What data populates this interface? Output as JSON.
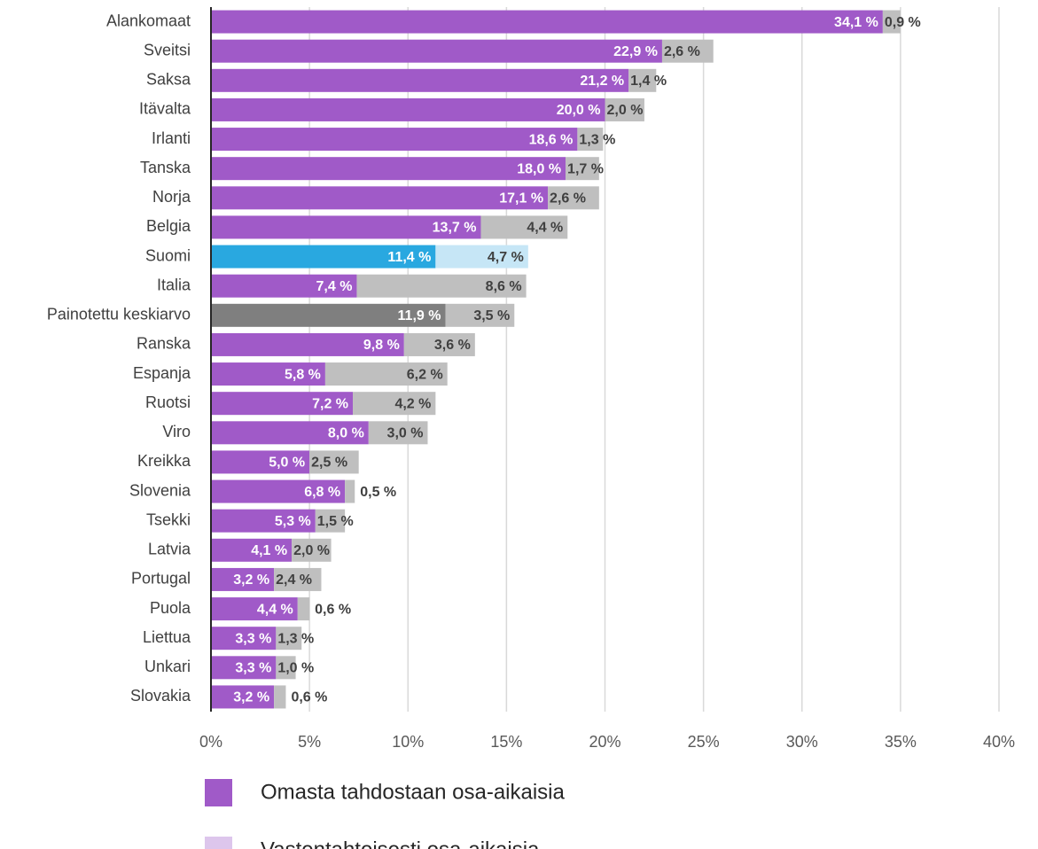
{
  "chart_data": {
    "type": "bar",
    "orientation": "horizontal",
    "stacked": true,
    "title": "",
    "xlabel": "",
    "ylabel": "",
    "xlim": [
      0,
      40
    ],
    "x_ticks": [
      "0%",
      "5%",
      "10%",
      "15%",
      "20%",
      "25%",
      "30%",
      "35%",
      "40%"
    ],
    "grid": "vertical",
    "legend_position": "bottom-left",
    "categories": [
      "Alankomaat",
      "Sveitsi",
      "Saksa",
      "Itävalta",
      "Irlanti",
      "Tanska",
      "Norja",
      "Belgia",
      "Suomi",
      "Italia",
      "Painotettu keskiarvo",
      "Ranska",
      "Espanja",
      "Ruotsi",
      "Viro",
      "Kreikka",
      "Slovenia",
      "Tsekki",
      "Latvia",
      "Portugal",
      "Puola",
      "Liettua",
      "Unkari",
      "Slovakia"
    ],
    "series": [
      {
        "name": "Omasta tahdostaan osa-aikaisia",
        "color": "#a05ac8",
        "values": [
          34.1,
          22.9,
          21.2,
          20.0,
          18.6,
          18.0,
          17.1,
          13.7,
          11.4,
          7.4,
          11.9,
          9.8,
          5.8,
          7.2,
          8.0,
          5.0,
          6.8,
          5.3,
          4.1,
          3.2,
          4.4,
          3.3,
          3.3,
          3.2
        ],
        "labels": [
          "34,1 %",
          "22,9 %",
          "21,2 %",
          "20,0 %",
          "18,6 %",
          "18,0 %",
          "17,1 %",
          "13,7 %",
          "11,4 %",
          "7,4 %",
          "11,9 %",
          "9,8 %",
          "5,8 %",
          "7,2 %",
          "8,0 %",
          "5,0 %",
          "6,8 %",
          "5,3 %",
          "4,1 %",
          "3,2 %",
          "4,4 %",
          "3,3 %",
          "3,3 %",
          "3,2 %"
        ]
      },
      {
        "name": "Vastentahtoisesti osa-aikaisia",
        "color": "#bfbfbf",
        "legend_color": "#ddc6ec",
        "values": [
          0.9,
          2.6,
          1.4,
          2.0,
          1.3,
          1.7,
          2.6,
          4.4,
          4.7,
          8.6,
          3.5,
          3.6,
          6.2,
          4.2,
          3.0,
          2.5,
          0.5,
          1.5,
          2.0,
          2.4,
          0.6,
          1.3,
          1.0,
          0.6
        ],
        "labels": [
          "0,9 %",
          "2,6 %",
          "1,4 %",
          "2,0 %",
          "1,3 %",
          "1,7 %",
          "2,6 %",
          "4,4 %",
          "4,7 %",
          "8,6 %",
          "3,5 %",
          "3,6 %",
          "6,2 %",
          "4,2 %",
          "3,0 %",
          "2,5 %",
          "0,5 %",
          "1,5 %",
          "2,0 %",
          "2,4 %",
          "0,6 %",
          "1,3 %",
          "1,0 %",
          "0,6 %"
        ]
      }
    ],
    "highlights": {
      "Suomi": {
        "colors": [
          "#29a8e0",
          "#c6e6f6"
        ]
      },
      "Painotettu keskiarvo": {
        "colors": [
          "#7f7f7f",
          "#bfbfbf"
        ]
      }
    }
  },
  "legend": {
    "items": [
      {
        "label": "Omasta tahdostaan osa-aikaisia",
        "color": "#a05ac8"
      },
      {
        "label": "Vastentahtoisesti osa-aikaisia",
        "color": "#ddc6ec"
      }
    ]
  }
}
